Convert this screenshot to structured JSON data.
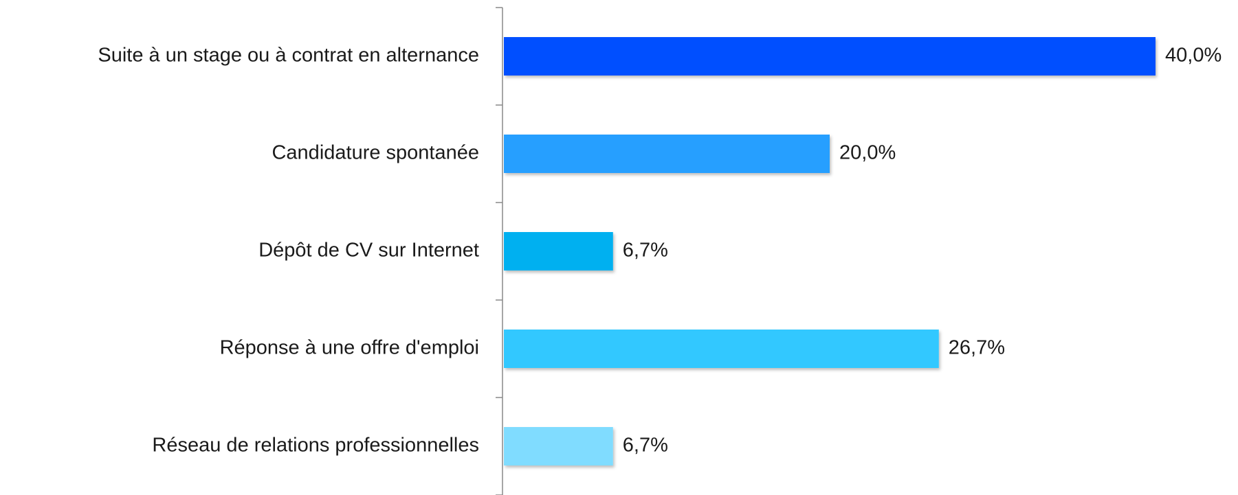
{
  "chart_data": {
    "type": "hbar",
    "categories": [
      "Suite à un stage ou à contrat en alternance",
      "Candidature spontanée",
      "Dépôt de CV sur Internet",
      "Réponse à une offre d'emploi",
      "Réseau de relations professionnelles"
    ],
    "values": [
      40.0,
      20.0,
      6.7,
      26.7,
      6.7
    ],
    "value_labels": [
      "40,0%",
      "20,0%",
      "6,7%",
      "26,7%",
      "6,7%"
    ],
    "colors": [
      "#0050ff",
      "#269fff",
      "#00b0f0",
      "#33c8ff",
      "#80dcff"
    ]
  }
}
